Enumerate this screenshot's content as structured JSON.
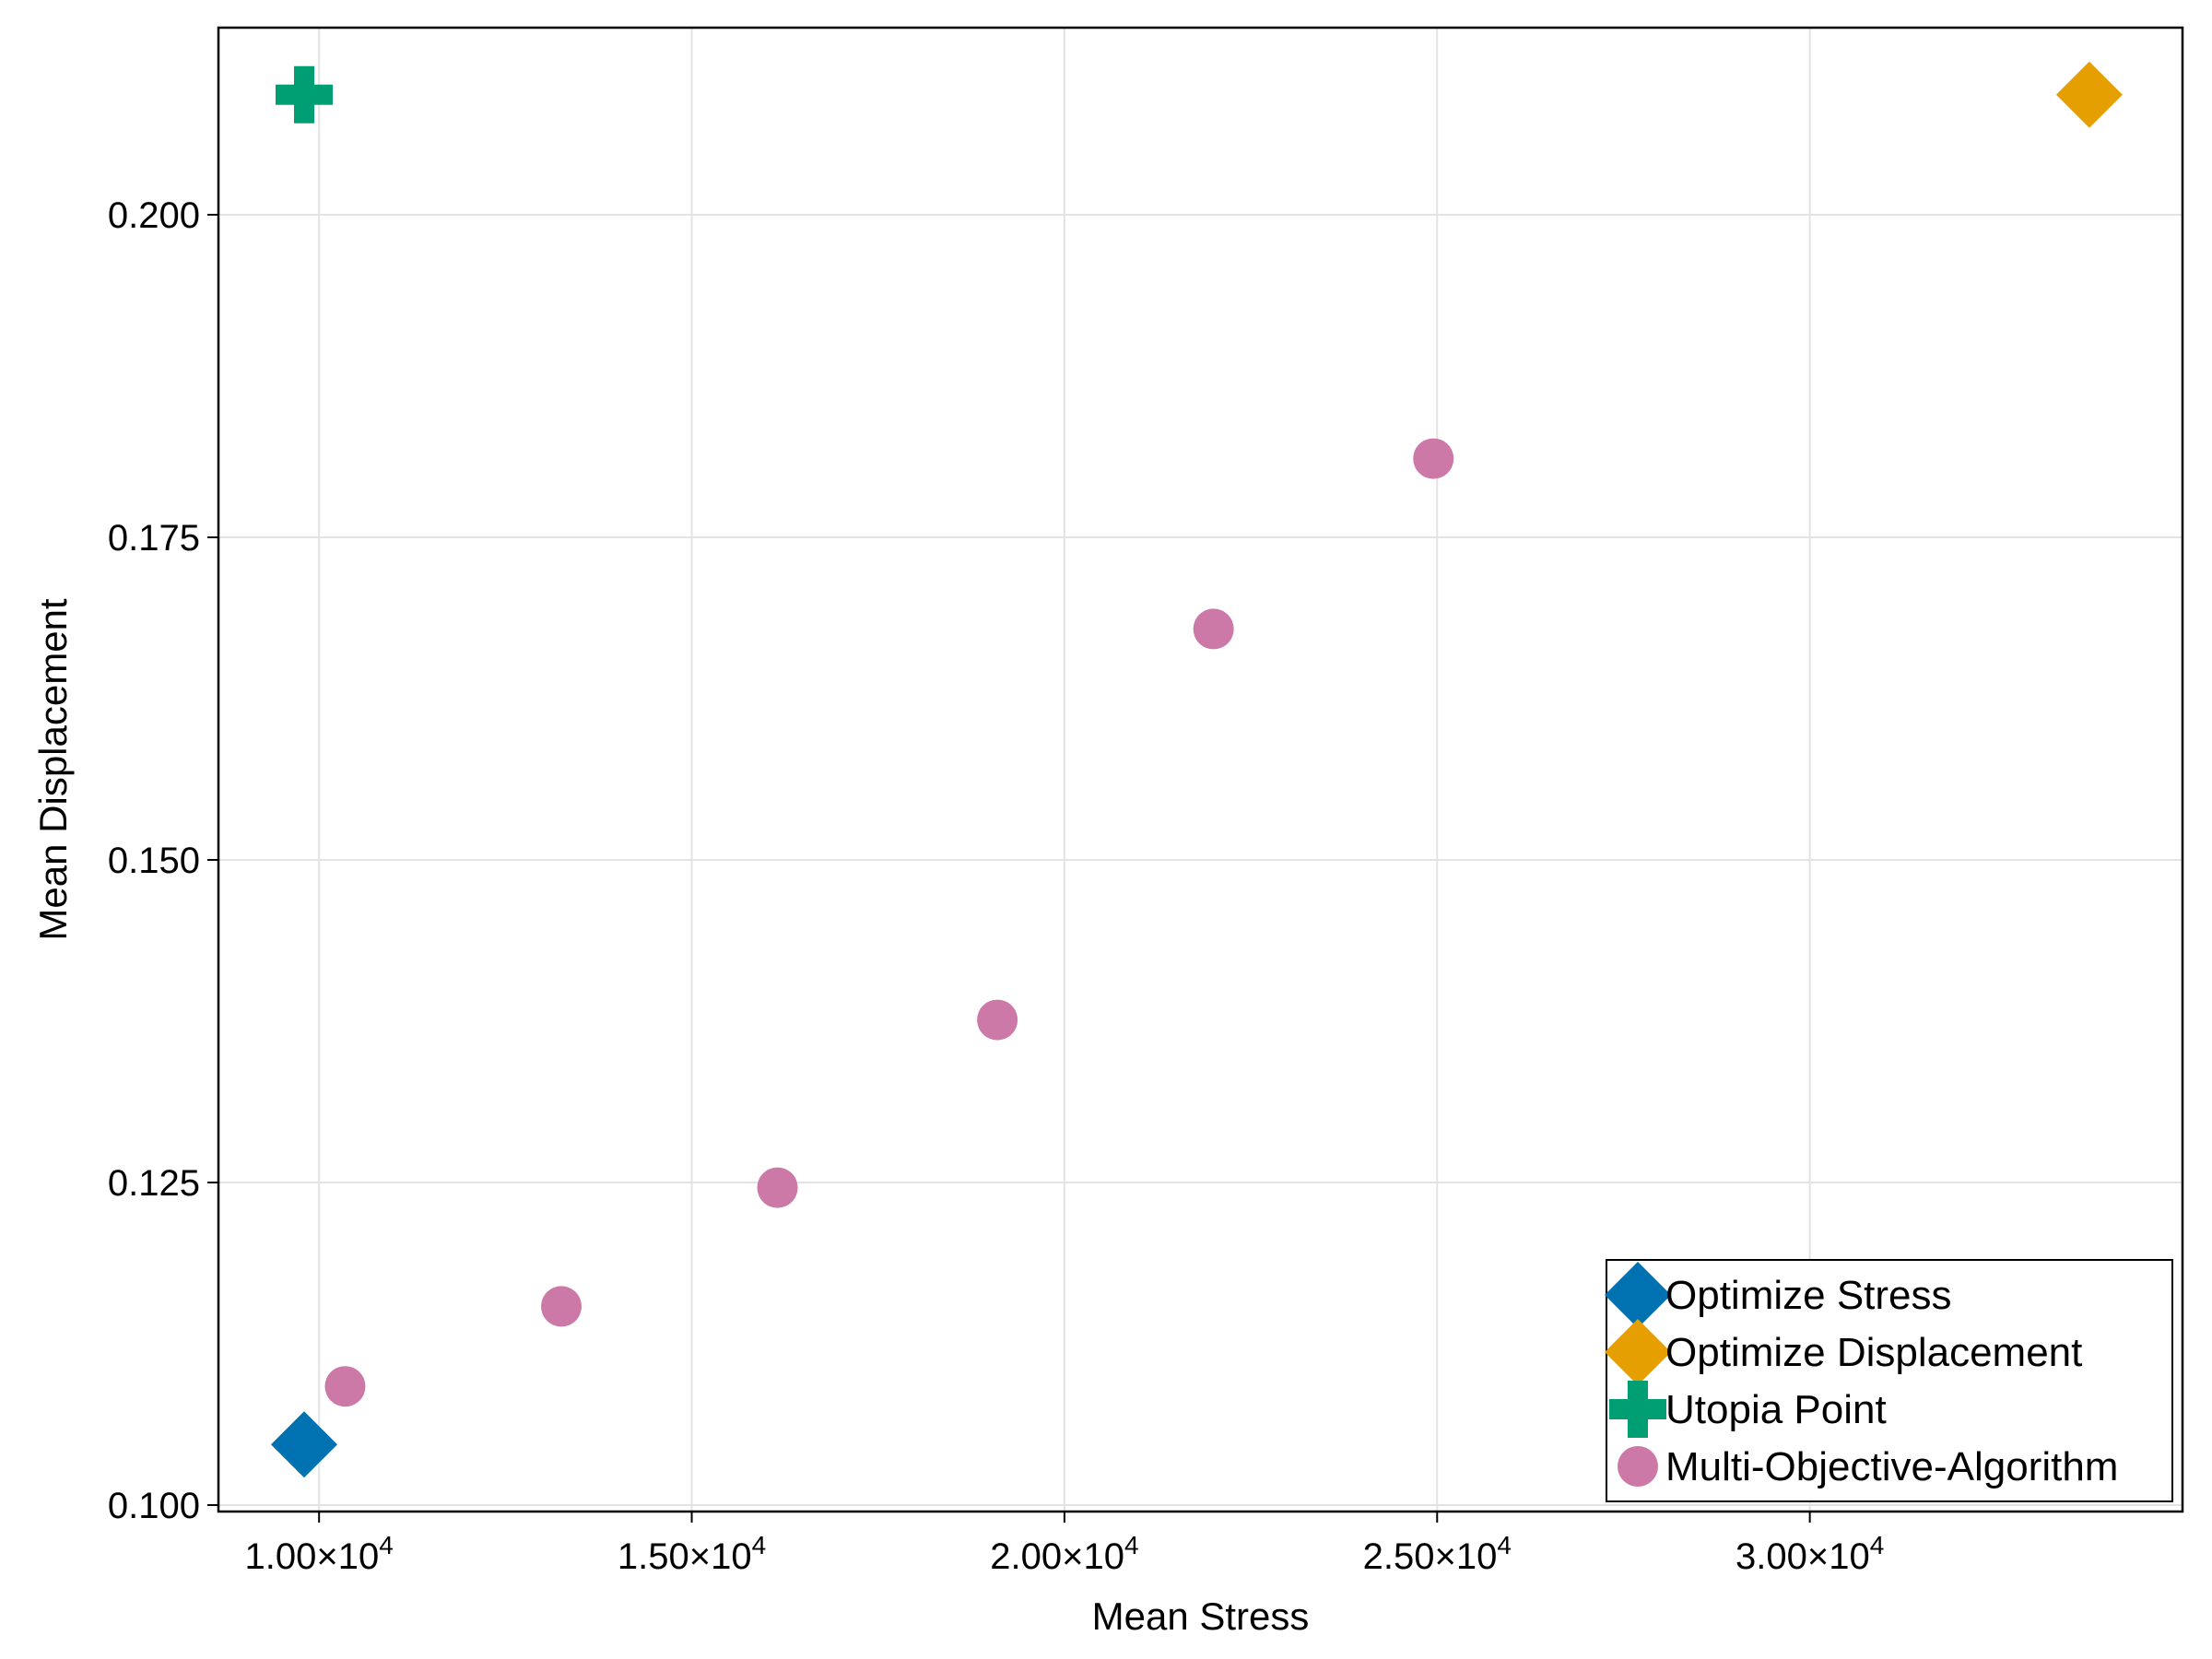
{
  "chart_data": {
    "type": "scatter",
    "title": "",
    "xlabel": "Mean Stress",
    "ylabel": "Mean Displacement",
    "xlim": [
      8650,
      35000
    ],
    "ylim": [
      0.0995,
      0.2145
    ],
    "x_ticks": [
      {
        "value": 10000,
        "label": "1.00×10",
        "exp": "4"
      },
      {
        "value": 15000,
        "label": "1.50×10",
        "exp": "4"
      },
      {
        "value": 20000,
        "label": "2.00×10",
        "exp": "4"
      },
      {
        "value": 25000,
        "label": "2.50×10",
        "exp": "4"
      },
      {
        "value": 30000,
        "label": "3.00×10",
        "exp": "4"
      }
    ],
    "y_ticks": [
      {
        "value": 0.1,
        "label": "0.100"
      },
      {
        "value": 0.125,
        "label": "0.125"
      },
      {
        "value": 0.15,
        "label": "0.150"
      },
      {
        "value": 0.175,
        "label": "0.175"
      },
      {
        "value": 0.2,
        "label": "0.200"
      }
    ],
    "grid": true,
    "legend_position": "bottom-right",
    "series": [
      {
        "name": "Optimize Stress",
        "marker": "diamond",
        "color": "#0072b2",
        "points": [
          {
            "x": 9800,
            "y": 0.1047
          }
        ]
      },
      {
        "name": "Optimize Displacement",
        "marker": "diamond",
        "color": "#e69f00",
        "points": [
          {
            "x": 33750,
            "y": 0.2093
          }
        ]
      },
      {
        "name": "Utopia Point",
        "marker": "cross",
        "color": "#009e73",
        "points": [
          {
            "x": 9800,
            "y": 0.2093
          }
        ]
      },
      {
        "name": "Multi-Objective-Algorithm",
        "marker": "circle",
        "color": "#cc79a7",
        "points": [
          {
            "x": 10350,
            "y": 0.1092
          },
          {
            "x": 13250,
            "y": 0.1154
          },
          {
            "x": 16150,
            "y": 0.1246
          },
          {
            "x": 19100,
            "y": 0.1376
          },
          {
            "x": 22000,
            "y": 0.1679
          },
          {
            "x": 24950,
            "y": 0.1811
          }
        ]
      }
    ]
  }
}
